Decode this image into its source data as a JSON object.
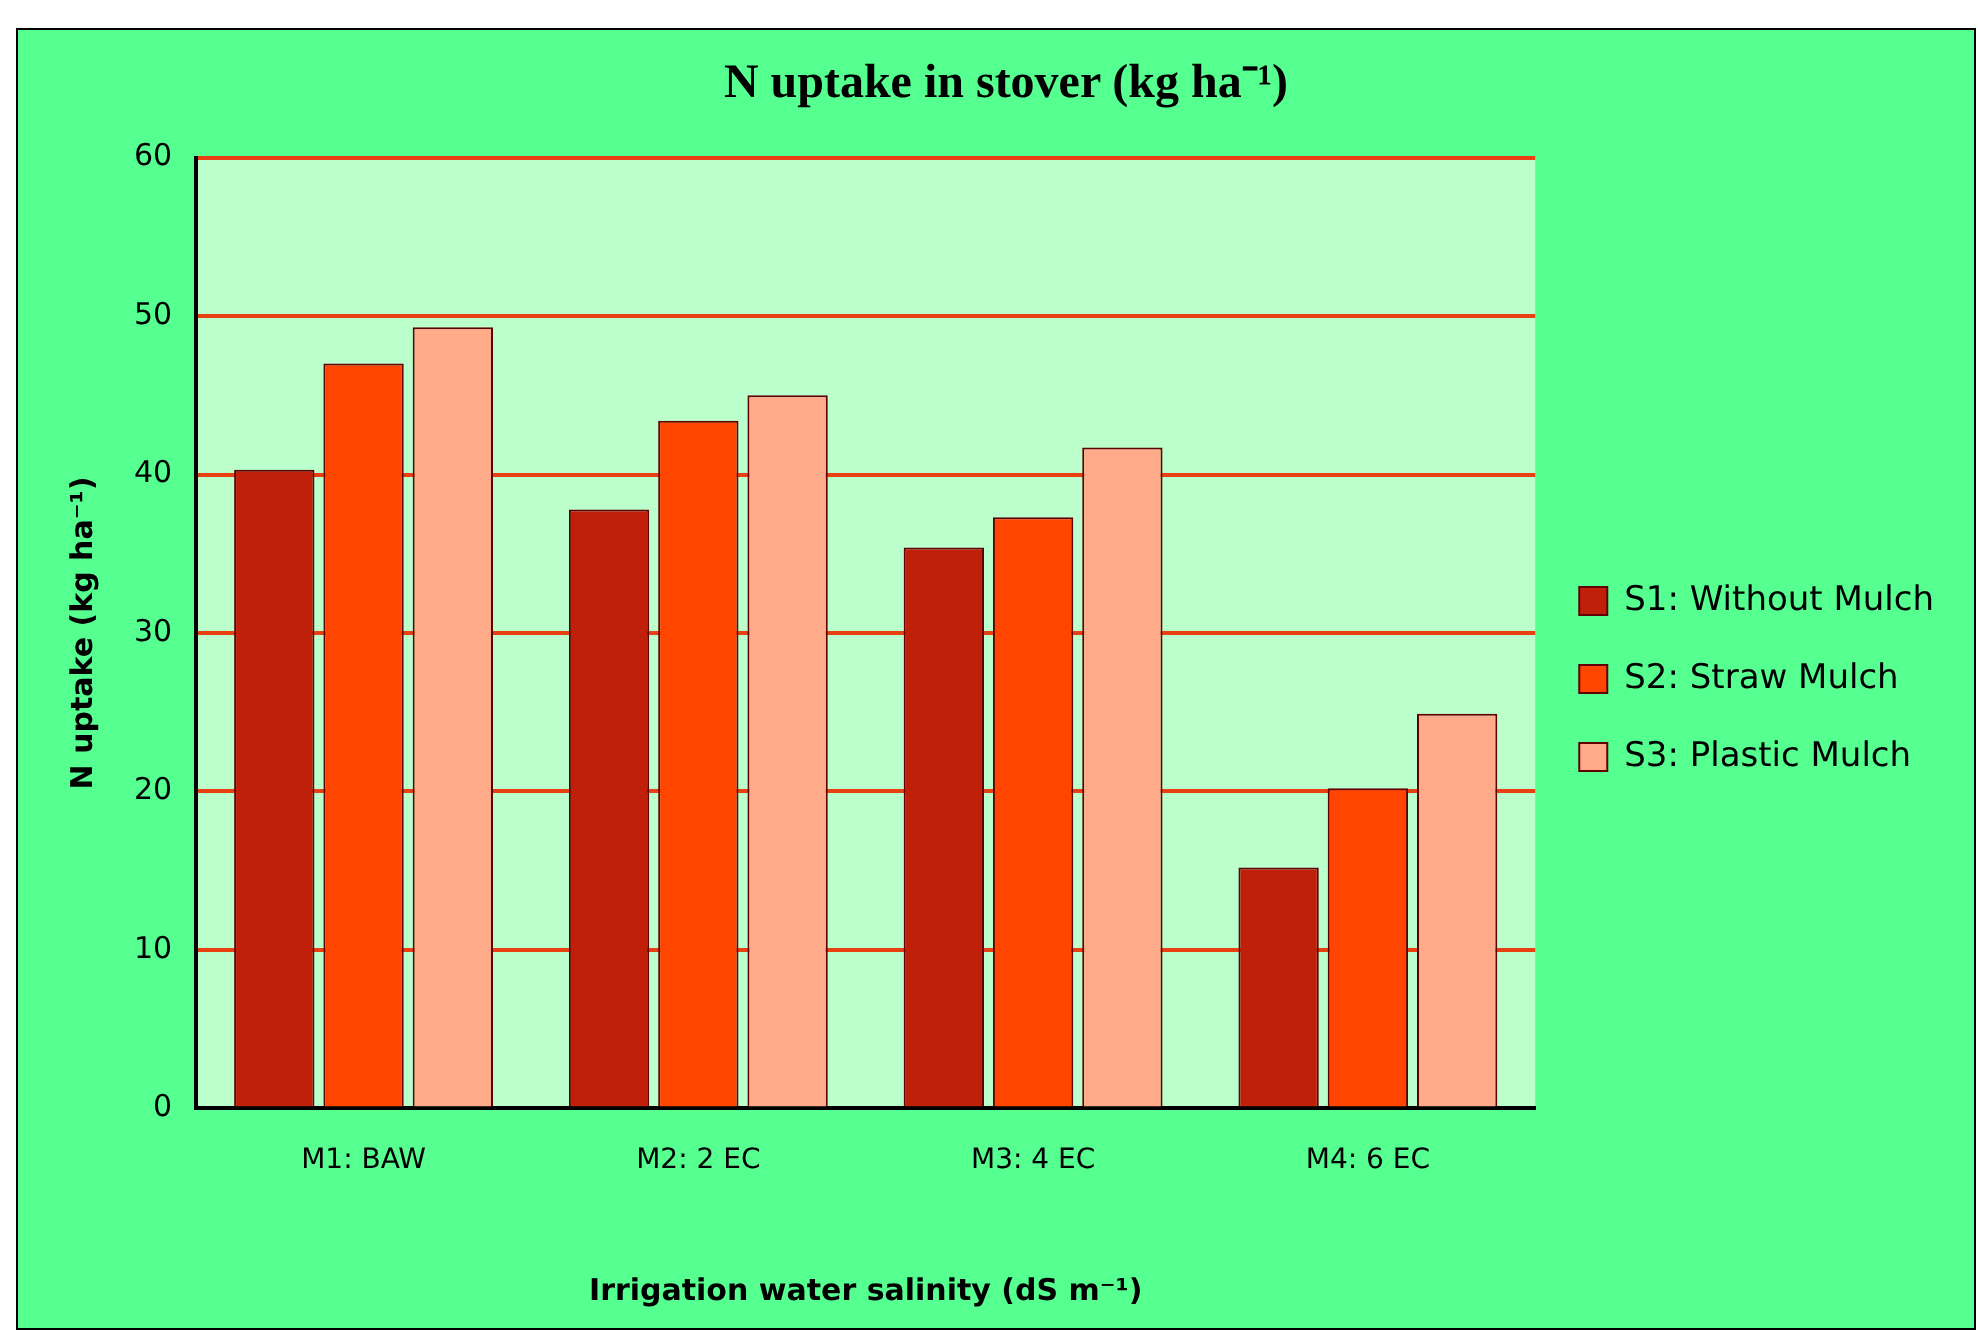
{
  "chart_data": {
    "type": "bar",
    "title": "N uptake in stover (kg ha⁻¹)",
    "xlabel": "Irrigation water salinity (dS m⁻¹)",
    "ylabel": "N uptake (kg ha⁻¹)",
    "categories": [
      "M1: BAW",
      "M2: 2 EC",
      "M3: 4 EC",
      "M4: 6 EC"
    ],
    "series": [
      {
        "name": "S1: Without Mulch",
        "color": "#c0200a",
        "values": [
          40.3,
          37.8,
          35.4,
          15.2
        ]
      },
      {
        "name": "S2: Straw Mulch",
        "color": "#ff4500",
        "values": [
          47,
          43.4,
          37.3,
          20.2
        ]
      },
      {
        "name": "S3: Plastic Mulch",
        "color": "#ffab8a",
        "values": [
          49.3,
          45,
          41.7,
          24.9
        ]
      }
    ],
    "ylim": [
      0,
      60
    ],
    "yticks": [
      0,
      10,
      20,
      30,
      40,
      50,
      60
    ],
    "grid": "y",
    "legend": "right"
  }
}
